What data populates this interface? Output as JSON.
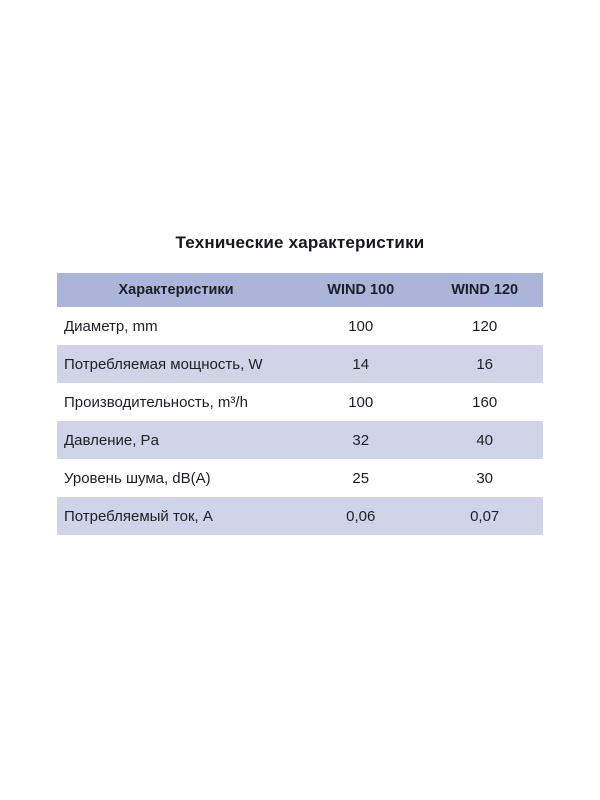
{
  "page": {
    "title": "Технические характеристики"
  },
  "table": {
    "columns": [
      "Характеристики",
      "WIND 100",
      "WIND 120"
    ],
    "rows": [
      {
        "label": "Диаметр, mm",
        "wind100": "100",
        "wind120": "120"
      },
      {
        "label": "Потребляемая мощность, W",
        "wind100": "14",
        "wind120": "16"
      },
      {
        "label": "Производительность, m³/h",
        "wind100": "100",
        "wind120": "160"
      },
      {
        "label": "Давление, Pa",
        "wind100": "32",
        "wind120": "40"
      },
      {
        "label": "Уровень шума, dB(A)",
        "wind100": "25",
        "wind120": "30"
      },
      {
        "label": "Потребляемый ток, А",
        "wind100": "0,06",
        "wind120": "0,07"
      }
    ],
    "colors": {
      "header_bg": "#abb5da",
      "stripe_bg": "#cfd4e9",
      "text": "#1e1e26",
      "background": "#ffffff"
    }
  }
}
